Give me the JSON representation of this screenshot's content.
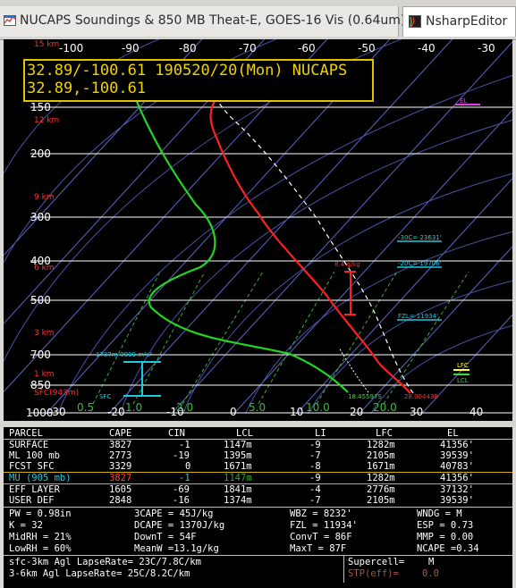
{
  "tabs": [
    {
      "label": "NUCAPS Soundings & 850 MB Theat-E, GOES-16 Vis (0.64um)",
      "icon": "map-view-icon",
      "active": false
    },
    {
      "label": "NsharpEditor",
      "icon": "nsharp-editor-icon",
      "active": true
    }
  ],
  "header": {
    "line1": "32.89/-100.61 190520/20(Mon) NUCAPS",
    "line2": "32.89,-100.61"
  },
  "skewt": {
    "temp_axis_top": [
      "-100",
      "-90",
      "-80",
      "-70",
      "-60",
      "-50",
      "-40",
      "-30"
    ],
    "temp_axis_bottom": [
      "-30",
      "-20",
      "-10",
      "0",
      "10",
      "20",
      "30",
      "40"
    ],
    "pressure_labels": [
      "150",
      "200",
      "300",
      "400",
      "500",
      "700",
      "850",
      "1000"
    ],
    "height_labels": [
      "15 km",
      "12 km",
      "9 km",
      "6 km",
      "3 km",
      "1 km",
      "SFC(943m)"
    ],
    "mixing_ratio_labels": [
      "0.5",
      "1.0",
      "2.0",
      "5.0",
      "10.0",
      "20.0"
    ],
    "annotations": {
      "el_marker": "EL",
      "minus30": "-30C= 23631'",
      "minus20": "-20C= 19706'",
      "fzl": "FZL= 11934'",
      "lfc": "LFC",
      "lcl": "LCL",
      "hail": "8.4 g/kg",
      "sfc_dew": "18.45597S",
      "sfc_temp": "28.004438",
      "effective_layer": "1737m-9999 m²s²",
      "sfc": "SFC"
    },
    "colors": {
      "temp": "#ff2020",
      "dew": "#22d622",
      "parcel": "#ffffff",
      "isobar": "#ffffff",
      "isotherm": "#6670c8",
      "mixing": "#3fb83f",
      "accent": "#20c8e0"
    }
  },
  "parcels": {
    "headers": [
      "PARCEL",
      "CAPE",
      "CIN",
      "LCL",
      "LI",
      "LFC",
      "EL"
    ],
    "rows": [
      {
        "name": "SURFACE",
        "cape": "3827",
        "cin": "-1",
        "lcl": "1147m",
        "li": "-9",
        "lfc": "1282m",
        "el": "41356'",
        "selected": false
      },
      {
        "name": "ML 100 mb",
        "cape": "2773",
        "cin": "-19",
        "lcl": "1395m",
        "li": "-7",
        "lfc": "2105m",
        "el": "39539'",
        "selected": false
      },
      {
        "name": "FCST SFC",
        "cape": "3329",
        "cin": "0",
        "lcl": "1671m",
        "li": "-8",
        "lfc": "1671m",
        "el": "40783'",
        "selected": false
      },
      {
        "name": "MU (905 mb)",
        "cape": "3827",
        "cin": "-1",
        "lcl": "1147m",
        "li": "-9",
        "lfc": "1282m",
        "el": "41356'",
        "selected": true
      },
      {
        "name": "EFF LAYER",
        "cape": "1605",
        "cin": "-69",
        "lcl": "1841m",
        "li": "-4",
        "lfc": "2776m",
        "el": "37132'",
        "selected": false
      },
      {
        "name": "USER DEF",
        "cape": "2848",
        "cin": "-16",
        "lcl": "1374m",
        "li": "-7",
        "lfc": "2105m",
        "el": "39539'",
        "selected": false
      }
    ]
  },
  "indices": {
    "row1": [
      "PW = 0.98in",
      "3CAPE = 45J/kg",
      "WBZ = 8232'",
      "WNDG = M"
    ],
    "row2": [
      "K = 32",
      "DCAPE = 1370J/kg",
      "FZL = 11934'",
      "ESP = 0.73"
    ],
    "row3": [
      "MidRH = 21%",
      "DownT = 54F",
      "ConvT = 86F",
      "MMP = 0.00"
    ],
    "row4": [
      "LowRH = 60%",
      "MeanW =13.1g/kg",
      "MaxT = 87F",
      "NCAPE =0.34"
    ]
  },
  "lapse": {
    "sfc3": "sfc-3km Agl LapseRate= 23C/7.8C/km",
    "mid": "3-6km Agl LapseRate=  25C/8.2C/km",
    "supercell": "Supercell=",
    "supercell_val": "M",
    "stp": "STP(eff)=",
    "stp_val": "0.0"
  }
}
